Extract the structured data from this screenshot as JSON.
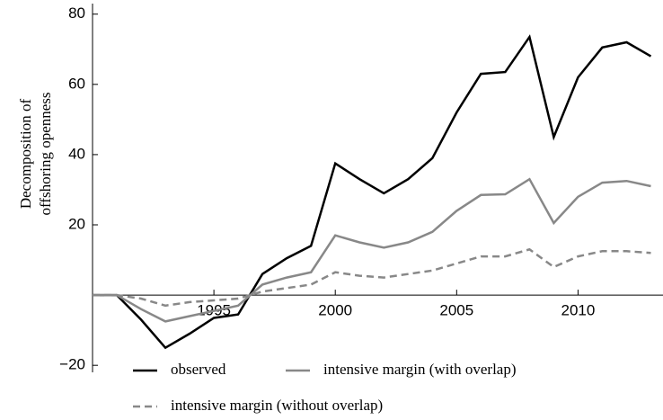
{
  "chart_data": {
    "type": "line",
    "ylabel": [
      "Decomposition of",
      "offshoring openness"
    ],
    "x": [
      1990,
      1991,
      1992,
      1993,
      1994,
      1995,
      1996,
      1997,
      1998,
      1999,
      2000,
      2001,
      2002,
      2003,
      2004,
      2005,
      2006,
      2007,
      2008,
      2009,
      2010,
      2011,
      2012,
      2013
    ],
    "series": [
      {
        "name": "observed",
        "color": "#000000",
        "line_style": "solid",
        "values": [
          0,
          0,
          -7,
          -15,
          -11,
          -6.5,
          -5.5,
          6,
          10.5,
          14,
          37.5,
          33,
          29,
          33,
          39,
          52,
          63,
          63.5,
          73.5,
          45,
          62,
          70.5,
          72,
          68
        ]
      },
      {
        "name": "intensive margin (with overlap)",
        "color": "#888888",
        "line_style": "solid",
        "values": [
          0,
          0,
          -4,
          -7.5,
          -6,
          -4.5,
          -3,
          3,
          5,
          6.5,
          17,
          15,
          13.5,
          15,
          18,
          24,
          28.5,
          28.7,
          33,
          20.5,
          28,
          32,
          32.5,
          31
        ]
      },
      {
        "name": "intensive margin (without overlap)",
        "color": "#888888",
        "line_style": "dashed",
        "values": [
          0,
          0,
          -1,
          -3,
          -2,
          -1.5,
          -1,
          1,
          2,
          3,
          6.5,
          5.5,
          5,
          6,
          7,
          9,
          11,
          11,
          13,
          8,
          11,
          12.5,
          12.5,
          12
        ]
      }
    ],
    "xlim": [
      1990,
      2013.5
    ],
    "xticks": [
      1995,
      2000,
      2005,
      2010
    ],
    "ylim": [
      -22,
      83
    ],
    "yticks": [
      {
        "value": -20,
        "label": "−20"
      },
      20,
      40,
      60,
      80
    ],
    "grid": false
  }
}
